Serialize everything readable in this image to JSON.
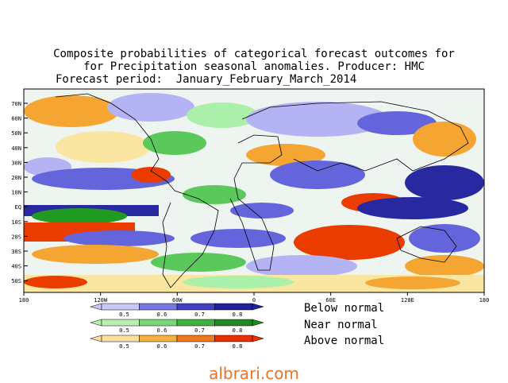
{
  "title": {
    "line1": "Composite probabilities of categorical forecast outcomes for",
    "line2": "for Precipitation seasonal anomalies. Producer: HMC",
    "line3": "Forecast period:  January_February_March_2014"
  },
  "axes": {
    "lat_labels": [
      "70N",
      "60N",
      "50N",
      "40N",
      "30N",
      "20N",
      "10N",
      "EQ",
      "10S",
      "20S",
      "30S",
      "40S",
      "50S"
    ],
    "lon_labels": [
      "180",
      "120W",
      "60W",
      "0",
      "60E",
      "120E",
      "180"
    ]
  },
  "legend": {
    "tick_labels": [
      "0.5",
      "0.6",
      "0.7",
      "0.8"
    ],
    "rows": [
      {
        "label": "Below normal",
        "colors": [
          "#c8c8f8",
          "#7878e6",
          "#4040c0",
          "#20209a"
        ]
      },
      {
        "label": "Near normal",
        "colors": [
          "#b8f0b0",
          "#78d878",
          "#40b040",
          "#208a20"
        ]
      },
      {
        "label": "Above normal",
        "colors": [
          "#fae0a0",
          "#f6b040",
          "#f07820",
          "#e83000"
        ]
      }
    ]
  },
  "watermark": "albrari.com",
  "colors": {
    "below_light": "#b4b4f5",
    "below_mid": "#6464dc",
    "below_dark": "#2828a0",
    "near_light": "#aaf0aa",
    "near_mid": "#5ac85a",
    "near_dark": "#209a20",
    "above_light": "#fae6a0",
    "above_mid": "#f5a532",
    "above_dark": "#eb3c00",
    "land": "#ffffff"
  }
}
